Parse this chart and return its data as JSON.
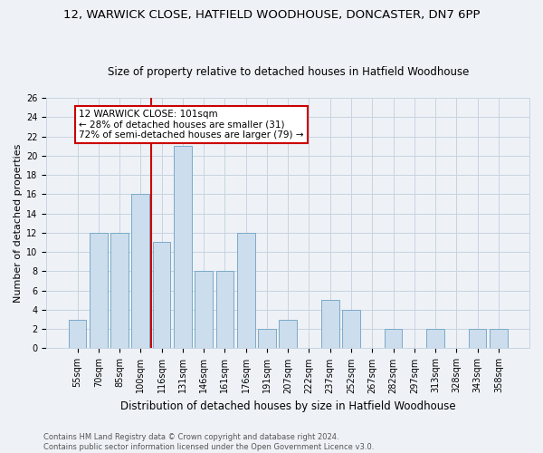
{
  "title": "12, WARWICK CLOSE, HATFIELD WOODHOUSE, DONCASTER, DN7 6PP",
  "subtitle": "Size of property relative to detached houses in Hatfield Woodhouse",
  "xlabel": "Distribution of detached houses by size in Hatfield Woodhouse",
  "ylabel": "Number of detached properties",
  "categories": [
    "55sqm",
    "70sqm",
    "85sqm",
    "100sqm",
    "116sqm",
    "131sqm",
    "146sqm",
    "161sqm",
    "176sqm",
    "191sqm",
    "207sqm",
    "222sqm",
    "237sqm",
    "252sqm",
    "267sqm",
    "282sqm",
    "297sqm",
    "313sqm",
    "328sqm",
    "343sqm",
    "358sqm"
  ],
  "values": [
    3,
    12,
    12,
    16,
    11,
    21,
    8,
    8,
    12,
    2,
    3,
    0,
    5,
    4,
    0,
    2,
    0,
    2,
    0,
    2,
    2
  ],
  "bar_color": "#ccdded",
  "bar_edge_color": "#7aaac8",
  "grid_color": "#c8d4e0",
  "background_color": "#eef2f7",
  "vline_color": "#cc0000",
  "annotation_text": "12 WARWICK CLOSE: 101sqm\n← 28% of detached houses are smaller (31)\n72% of semi-detached houses are larger (79) →",
  "annotation_box_color": "white",
  "annotation_box_edge_color": "#cc0000",
  "ylim": [
    0,
    26
  ],
  "yticks": [
    0,
    2,
    4,
    6,
    8,
    10,
    12,
    14,
    16,
    18,
    20,
    22,
    24,
    26
  ],
  "footer": "Contains HM Land Registry data © Crown copyright and database right 2024.\nContains public sector information licensed under the Open Government Licence v3.0.",
  "title_fontsize": 9.5,
  "subtitle_fontsize": 8.5,
  "xlabel_fontsize": 8.5,
  "ylabel_fontsize": 8,
  "tick_fontsize": 7,
  "annotation_fontsize": 7.5,
  "footer_fontsize": 6
}
